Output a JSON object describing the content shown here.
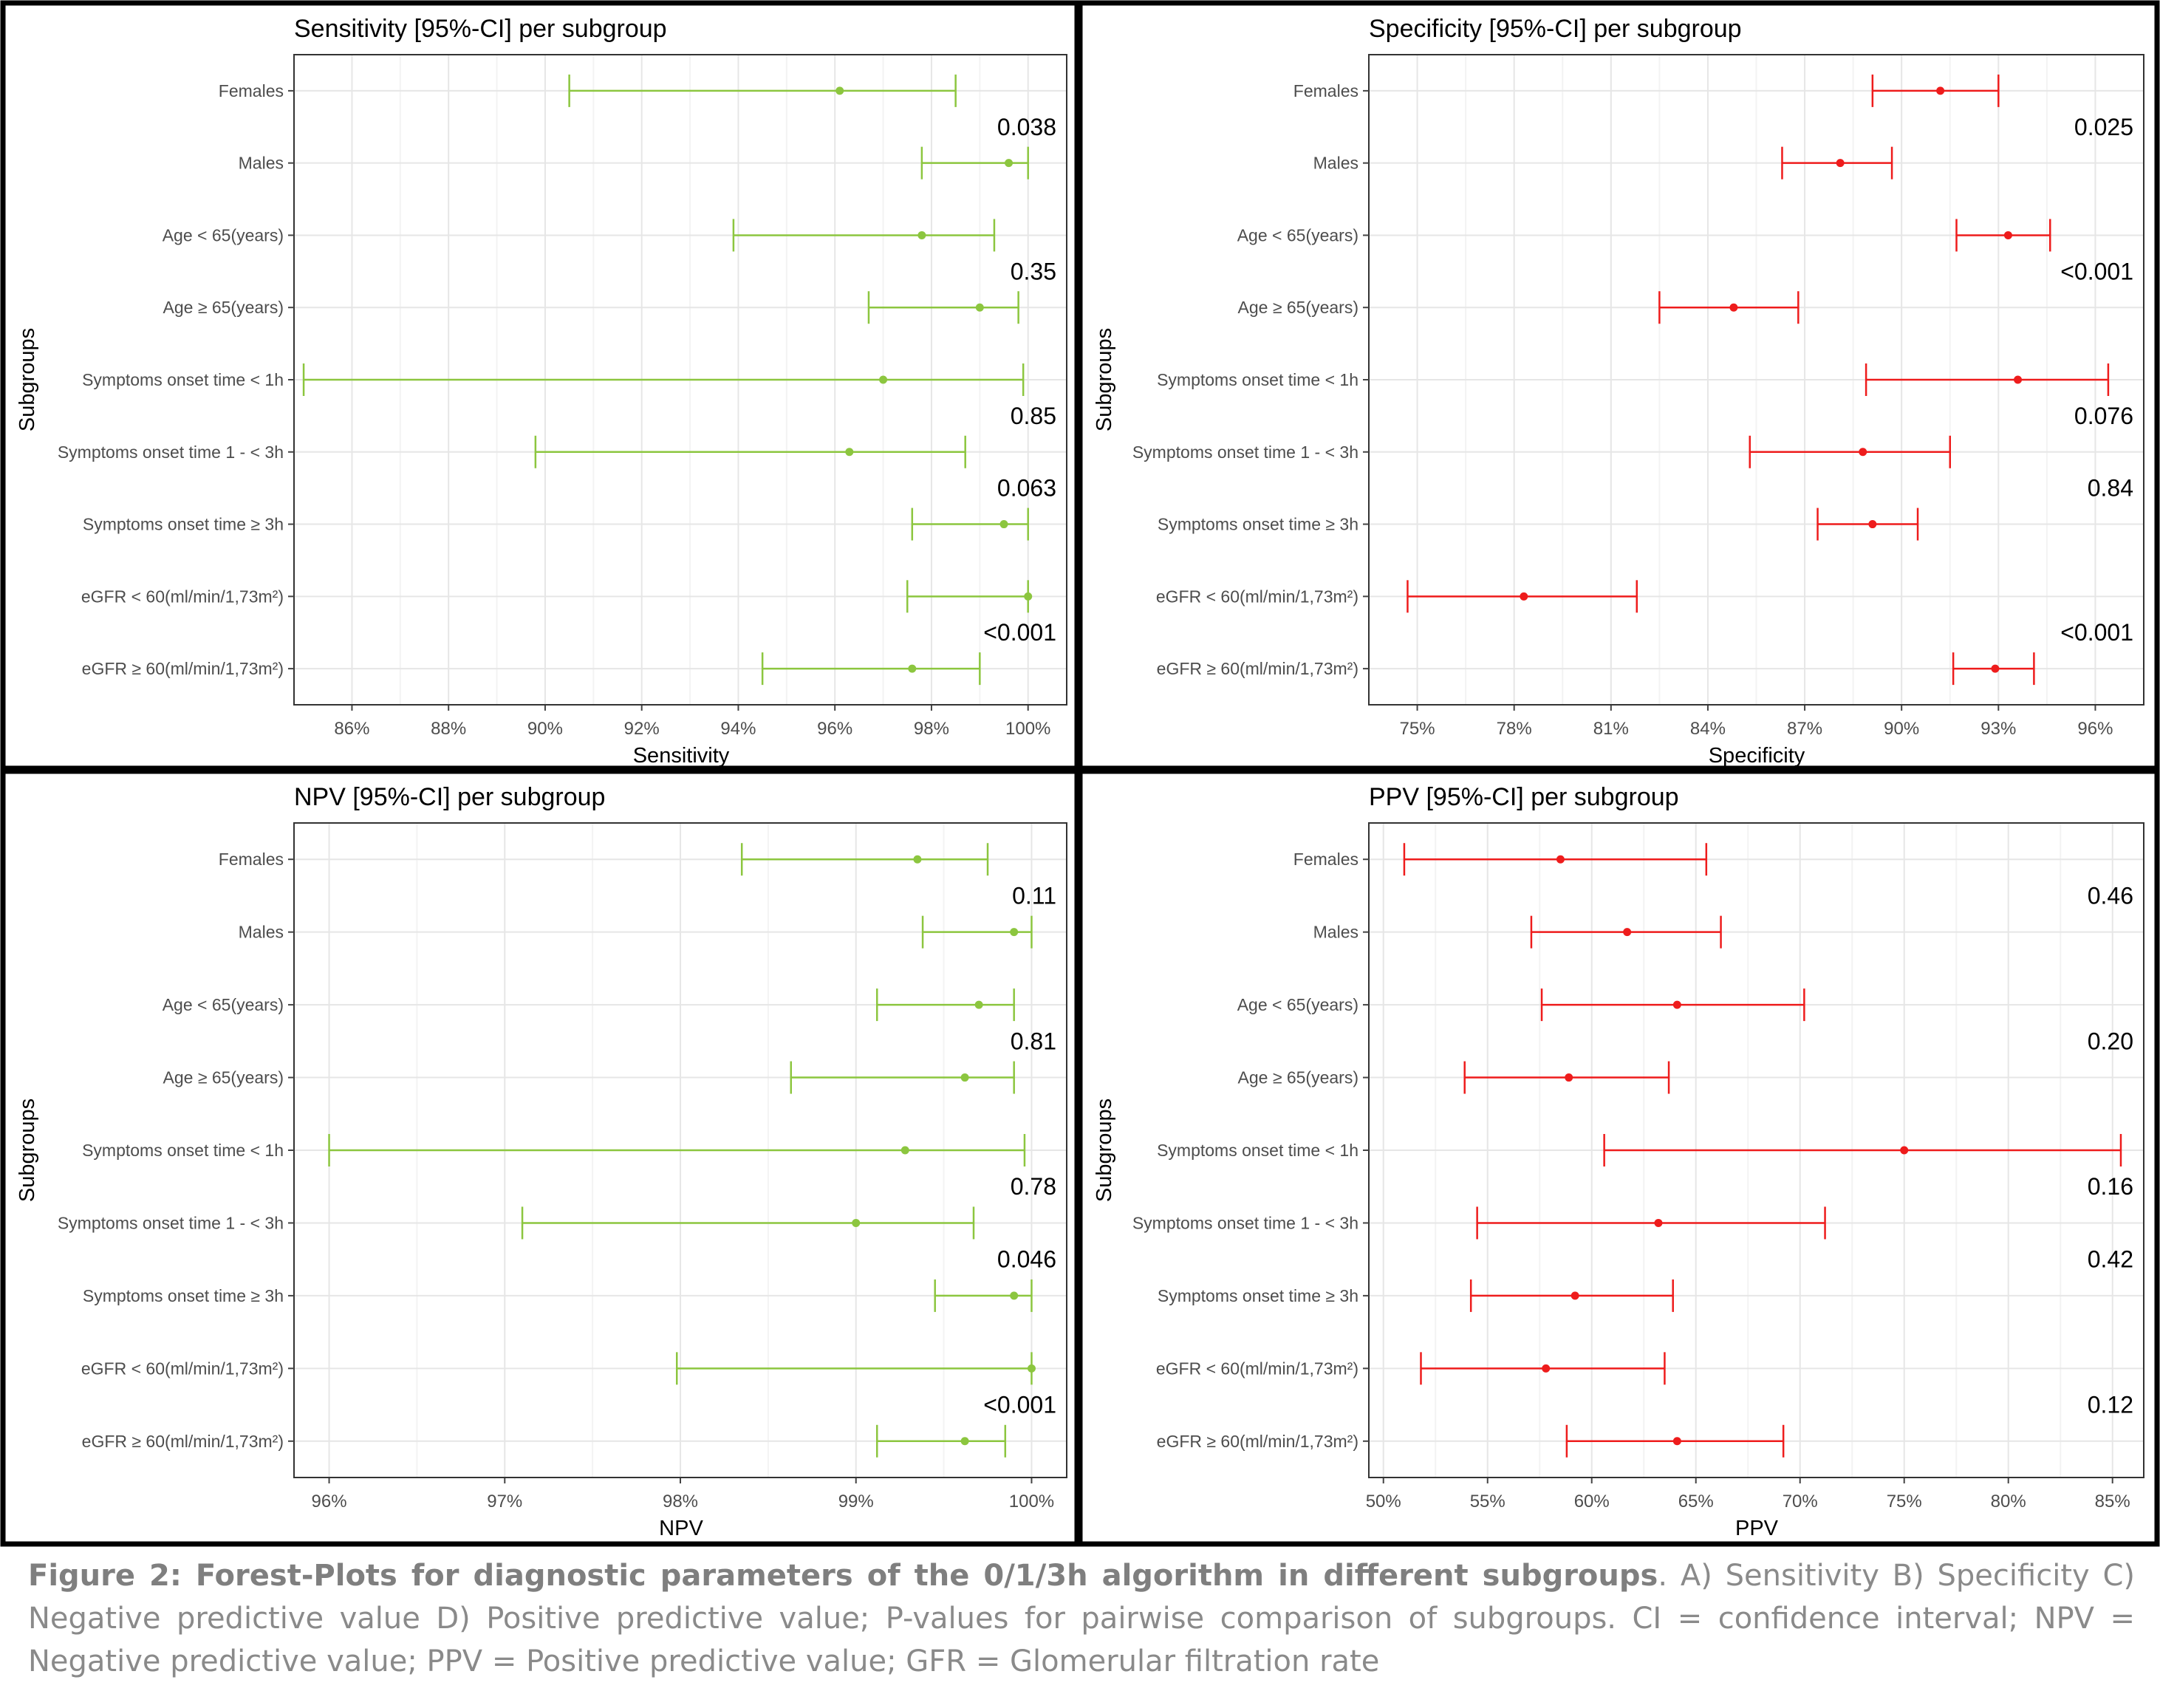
{
  "chart_data": [
    {
      "type": "forest",
      "title": "Sensitivity [95%-CI] per subgroup",
      "xlabel": "Sensitivity",
      "ylabel": "Subgroups",
      "color": "#8cc63f",
      "xlim": [
        84.8,
        100.8
      ],
      "xticks": [
        86,
        88,
        90,
        92,
        94,
        96,
        98,
        100
      ],
      "tick_labels": [
        "86%",
        "88%",
        "90%",
        "92%",
        "94%",
        "96%",
        "98%",
        "100%"
      ],
      "categories": [
        "Females",
        "Males",
        "Age < 65(years)",
        "Age ≥ 65(years)",
        "Symptoms onset time < 1h",
        "Symptoms onset time 1 - < 3h",
        "Symptoms onset time ≥ 3h",
        "eGFR < 60(ml/min/1,73m²)",
        "eGFR ≥ 60(ml/min/1,73m²)"
      ],
      "estimates": [
        96.1,
        99.6,
        97.8,
        99.0,
        97.0,
        96.3,
        99.5,
        100.0,
        97.6
      ],
      "lower": [
        90.5,
        97.8,
        93.9,
        96.7,
        85.0,
        89.8,
        97.6,
        97.5,
        94.5
      ],
      "upper": [
        98.5,
        100.0,
        99.3,
        99.8,
        99.9,
        98.7,
        100.0,
        100.0,
        99.0
      ],
      "pvalues": [
        {
          "label": "0.038",
          "between": [
            0,
            1
          ]
        },
        {
          "label": "0.35",
          "between": [
            2,
            3
          ]
        },
        {
          "label": "0.85",
          "between": [
            4,
            5
          ]
        },
        {
          "label": "0.063",
          "between": [
            5,
            6
          ]
        },
        {
          "label": "<0.001",
          "between": [
            7,
            8
          ]
        }
      ]
    },
    {
      "type": "forest",
      "title": "Specificity [95%-CI] per subgroup",
      "xlabel": "Specificity",
      "ylabel": "Subgroups",
      "color": "#ee1c1c",
      "xlim": [
        73.5,
        97.5
      ],
      "xticks": [
        75,
        78,
        81,
        84,
        87,
        90,
        93,
        96
      ],
      "tick_labels": [
        "75%",
        "78%",
        "81%",
        "84%",
        "87%",
        "90%",
        "93%",
        "96%"
      ],
      "categories": [
        "Females",
        "Males",
        "Age < 65(years)",
        "Age ≥ 65(years)",
        "Symptoms onset time < 1h",
        "Symptoms onset time 1 - < 3h",
        "Symptoms onset time ≥ 3h",
        "eGFR < 60(ml/min/1,73m²)",
        "eGFR ≥ 60(ml/min/1,73m²)"
      ],
      "estimates": [
        91.2,
        88.1,
        93.3,
        84.8,
        93.6,
        88.8,
        89.1,
        78.3,
        92.9
      ],
      "lower": [
        89.1,
        86.3,
        91.7,
        82.5,
        88.9,
        85.3,
        87.4,
        74.7,
        91.6
      ],
      "upper": [
        93.0,
        89.7,
        94.6,
        86.8,
        96.4,
        91.5,
        90.5,
        81.8,
        94.1
      ],
      "pvalues": [
        {
          "label": "0.025",
          "between": [
            0,
            1
          ]
        },
        {
          "label": "<0.001",
          "between": [
            2,
            3
          ]
        },
        {
          "label": "0.076",
          "between": [
            4,
            5
          ]
        },
        {
          "label": "0.84",
          "between": [
            5,
            6
          ]
        },
        {
          "label": "<0.001",
          "between": [
            7,
            8
          ]
        }
      ]
    },
    {
      "type": "forest",
      "title": "NPV [95%-CI] per subgroup",
      "xlabel": "NPV",
      "ylabel": "Subgroups",
      "color": "#8cc63f",
      "xlim": [
        95.8,
        100.2
      ],
      "xticks": [
        96,
        97,
        98,
        99,
        100
      ],
      "tick_labels": [
        "96%",
        "97%",
        "98%",
        "99%",
        "100%"
      ],
      "categories": [
        "Females",
        "Males",
        "Age < 65(years)",
        "Age ≥ 65(years)",
        "Symptoms onset time < 1h",
        "Symptoms onset time 1 - < 3h",
        "Symptoms onset time ≥ 3h",
        "eGFR < 60(ml/min/1,73m²)",
        "eGFR ≥ 60(ml/min/1,73m²)"
      ],
      "estimates": [
        99.35,
        99.9,
        99.7,
        99.62,
        99.28,
        99.0,
        99.9,
        100.0,
        99.62
      ],
      "lower": [
        98.35,
        99.38,
        99.12,
        98.63,
        96.0,
        97.1,
        99.45,
        97.98,
        99.12
      ],
      "upper": [
        99.75,
        100.0,
        99.9,
        99.9,
        99.96,
        99.67,
        100.0,
        100.0,
        99.85
      ],
      "pvalues": [
        {
          "label": "0.11",
          "between": [
            0,
            1
          ]
        },
        {
          "label": "0.81",
          "between": [
            2,
            3
          ]
        },
        {
          "label": "0.78",
          "between": [
            4,
            5
          ]
        },
        {
          "label": "0.046",
          "between": [
            5,
            6
          ]
        },
        {
          "label": "<0.001",
          "between": [
            7,
            8
          ]
        }
      ]
    },
    {
      "type": "forest",
      "title": "PPV [95%-CI] per subgroup",
      "xlabel": "PPV",
      "ylabel": "Subgroups",
      "color": "#ee1c1c",
      "xlim": [
        49.3,
        86.5
      ],
      "xticks": [
        50,
        55,
        60,
        65,
        70,
        75,
        80,
        85
      ],
      "tick_labels": [
        "50%",
        "55%",
        "60%",
        "65%",
        "70%",
        "75%",
        "80%",
        "85%"
      ],
      "categories": [
        "Females",
        "Males",
        "Age < 65(years)",
        "Age ≥ 65(years)",
        "Symptoms onset time < 1h",
        "Symptoms onset time 1 - < 3h",
        "Symptoms onset time ≥ 3h",
        "eGFR < 60(ml/min/1,73m²)",
        "eGFR ≥ 60(ml/min/1,73m²)"
      ],
      "estimates": [
        58.5,
        61.7,
        64.1,
        58.9,
        75.0,
        63.2,
        59.2,
        57.8,
        64.1
      ],
      "lower": [
        51.0,
        57.1,
        57.6,
        53.9,
        60.6,
        54.5,
        54.2,
        51.8,
        58.8
      ],
      "upper": [
        65.5,
        66.2,
        70.2,
        63.7,
        85.4,
        71.2,
        63.9,
        63.5,
        69.2
      ],
      "pvalues": [
        {
          "label": "0.46",
          "between": [
            0,
            1
          ]
        },
        {
          "label": "0.20",
          "between": [
            2,
            3
          ]
        },
        {
          "label": "0.16",
          "between": [
            4,
            5
          ]
        },
        {
          "label": "0.42",
          "between": [
            5,
            6
          ]
        },
        {
          "label": "0.12",
          "between": [
            7,
            8
          ]
        }
      ]
    }
  ],
  "caption": {
    "bold": "Figure 2: Forest-Plots for diagnostic parameters of the 0/1/3h algorithm in different subgroups",
    "rest": ". A) Sensitivity B) Specificity C) Negative predictive value D) Positive predictive value; P-values for pairwise comparison of subgroups. CI = confidence interval; NPV = Negative predictive value; PPV = Positive predictive value; GFR = Glomerular filtration rate"
  }
}
